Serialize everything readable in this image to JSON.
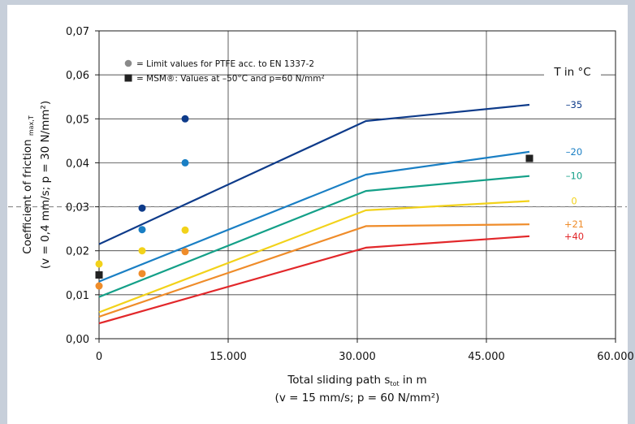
{
  "chart_data": {
    "type": "line",
    "title": "",
    "xlabel": "Total sliding path s",
    "xlabel_sub": "tot",
    "xlabel_unit": " in m",
    "xlabel_line2": "(v = 15 mm/s; p = 60 N/mm²)",
    "ylabel": "Coefficient of friction",
    "ylabel_sub": "max,T",
    "ylabel_line2": "(v = 0,4 mm/s; p = 30 N/mm²)",
    "xlim": [
      0,
      60000
    ],
    "ylim": [
      0,
      0.07
    ],
    "x_ticks": [
      0,
      15000,
      30000,
      45000,
      60000
    ],
    "x_tick_labels": [
      "0",
      "15.000",
      "30.000",
      "45.000",
      "60.000"
    ],
    "y_ticks": [
      0,
      0.01,
      0.02,
      0.03,
      0.04,
      0.05,
      0.06,
      0.07
    ],
    "y_tick_labels": [
      "0,00",
      "0,01",
      "0,02",
      "0,03",
      "0,04",
      "0,05",
      "0,06",
      "0,07"
    ],
    "grid": true,
    "reference_line_y": 0.03,
    "legend_title": "T in °C",
    "legend": [
      {
        "marker": "circle",
        "color": "#8a8a8a",
        "label": "= Limit values for PTFE acc. to EN 1337-2"
      },
      {
        "marker": "square",
        "color": "#222222",
        "label": "= MSM®: Values at –50°C and p=60 N/mm²"
      }
    ],
    "series": [
      {
        "name": "–35",
        "color": "#0e3b8a",
        "x": [
          0,
          31000,
          50000
        ],
        "y": [
          0.0215,
          0.0495,
          0.0532
        ]
      },
      {
        "name": "–20",
        "color": "#1a7fc4",
        "x": [
          0,
          31000,
          50000
        ],
        "y": [
          0.013,
          0.0373,
          0.0425
        ]
      },
      {
        "name": "–10",
        "color": "#14a088",
        "x": [
          0,
          31000,
          50000
        ],
        "y": [
          0.0095,
          0.0336,
          0.037
        ]
      },
      {
        "name": "0",
        "color": "#f2d21a",
        "x": [
          0,
          31000,
          50000
        ],
        "y": [
          0.006,
          0.0292,
          0.0313
        ]
      },
      {
        "name": "+21",
        "color": "#ef8c2a",
        "x": [
          0,
          31000,
          50000
        ],
        "y": [
          0.005,
          0.0256,
          0.026
        ]
      },
      {
        "name": "+40",
        "color": "#e2272a",
        "x": [
          0,
          31000,
          50000
        ],
        "y": [
          0.0035,
          0.0207,
          0.0233
        ]
      }
    ],
    "limit_points": [
      {
        "x": 0,
        "y": 0.017,
        "color": "#f2d21a"
      },
      {
        "x": 0,
        "y": 0.012,
        "color": "#ef8c2a"
      },
      {
        "x": 5000,
        "y": 0.0297,
        "color": "#0e3b8a"
      },
      {
        "x": 5000,
        "y": 0.0248,
        "color": "#1a7fc4"
      },
      {
        "x": 5000,
        "y": 0.02,
        "color": "#f2d21a"
      },
      {
        "x": 5000,
        "y": 0.0148,
        "color": "#ef8c2a"
      },
      {
        "x": 10000,
        "y": 0.05,
        "color": "#0e3b8a"
      },
      {
        "x": 10000,
        "y": 0.04,
        "color": "#1a7fc4"
      },
      {
        "x": 10000,
        "y": 0.0247,
        "color": "#f2d21a"
      },
      {
        "x": 10000,
        "y": 0.0198,
        "color": "#ef8c2a"
      }
    ],
    "msm_points": [
      {
        "x": 0,
        "y": 0.0145
      },
      {
        "x": 50000,
        "y": 0.041
      }
    ]
  }
}
